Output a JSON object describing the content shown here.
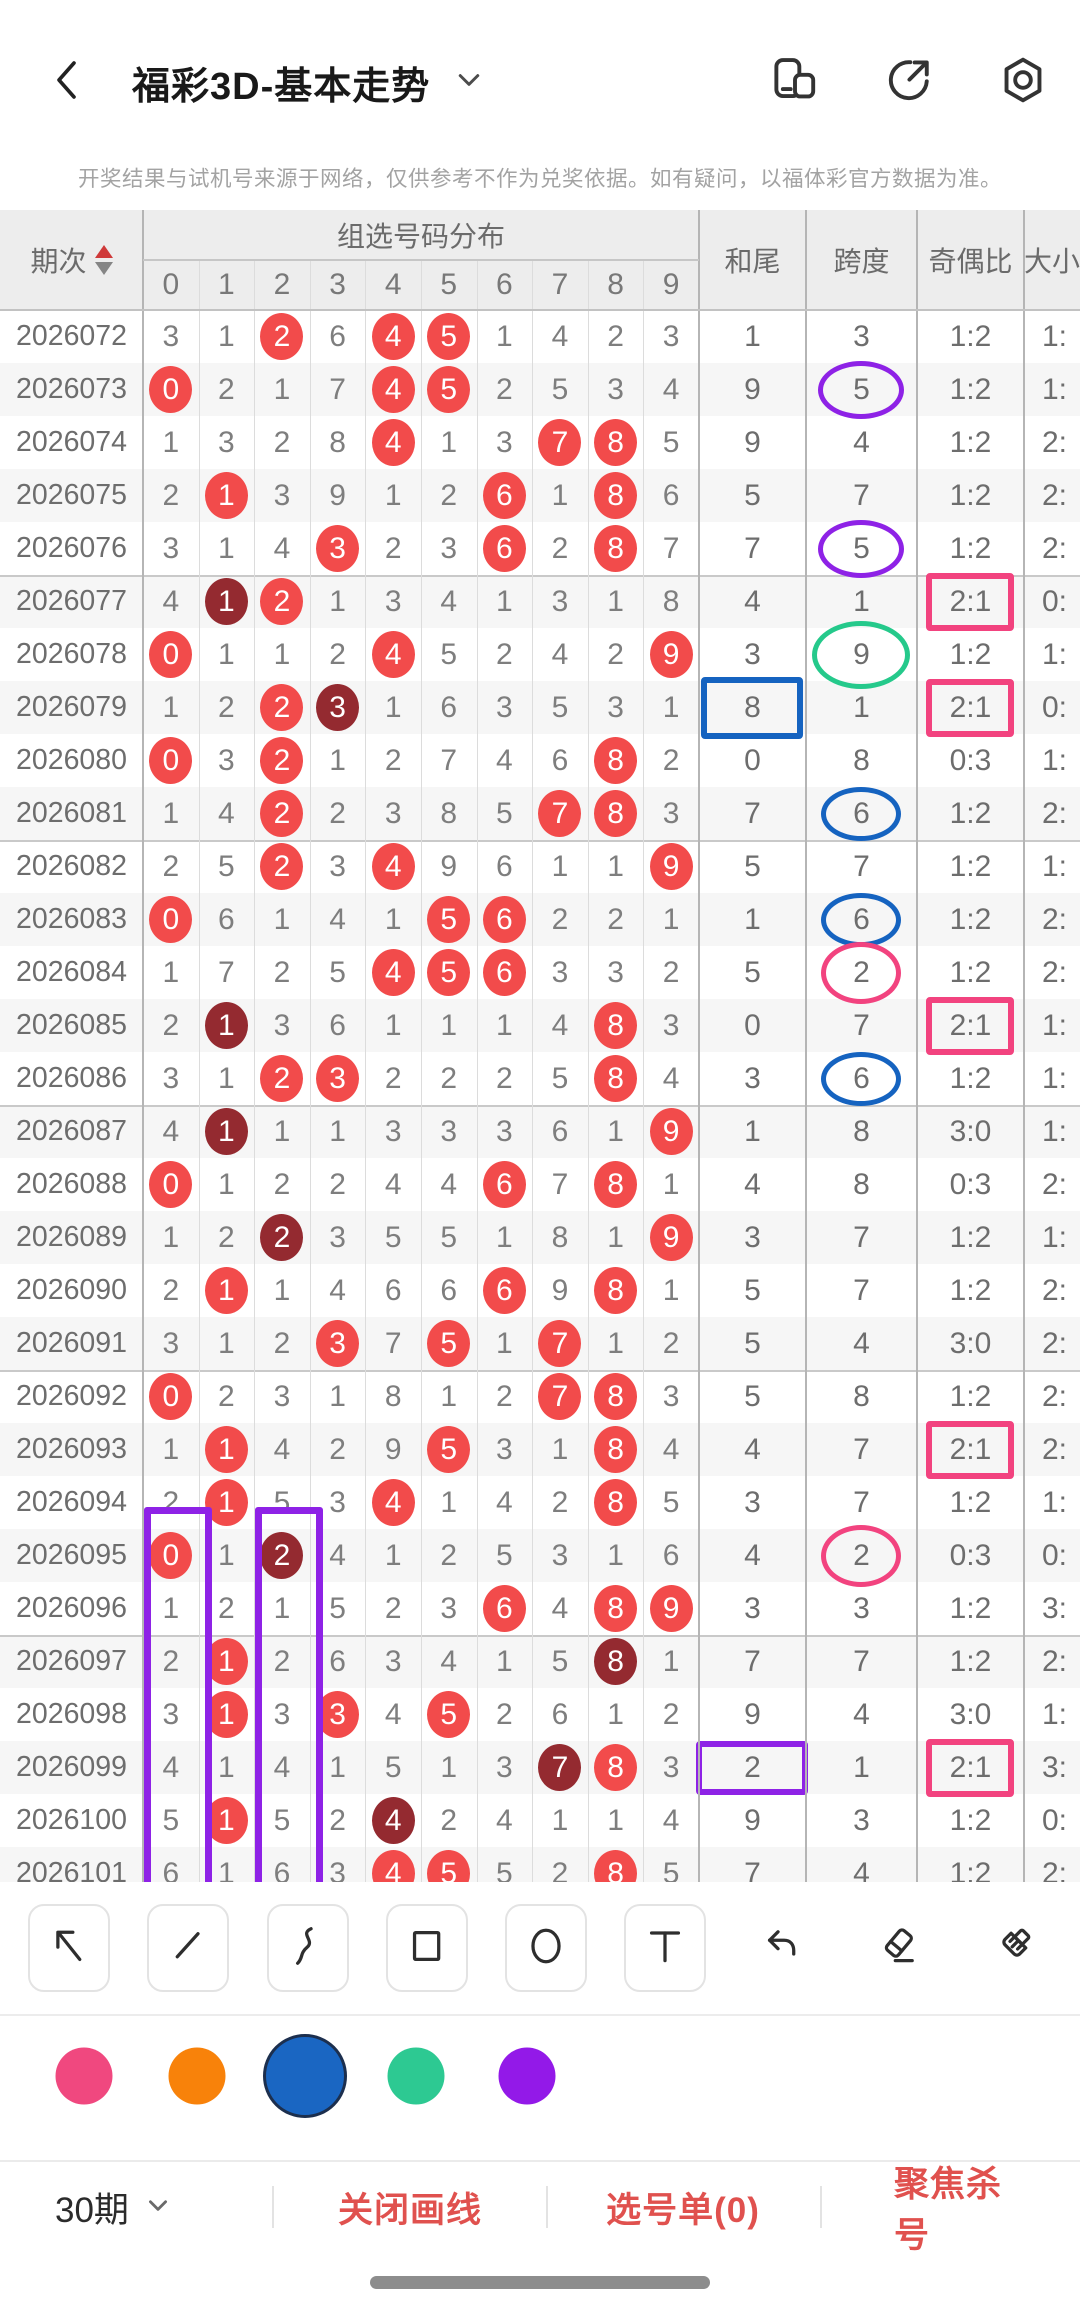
{
  "header": {
    "title": "福彩3D-基本走势",
    "action_icons": [
      "compare",
      "share",
      "settings"
    ]
  },
  "disclaimer": "开奖结果与试机号来源于网络，仅供参考不作为兑奖依据。如有疑问，以福体彩官方数据为准。",
  "table": {
    "header": {
      "period": "期次",
      "group": "组选号码分布",
      "digits": [
        "0",
        "1",
        "2",
        "3",
        "4",
        "5",
        "6",
        "7",
        "8",
        "9"
      ],
      "hewei": "和尾",
      "kuadu": "跨度",
      "jiou": "奇偶比",
      "daxiao": "大小"
    },
    "digits_format": "space separated tokens; suffix r = red filled circle, d = dark-red filled circle",
    "rows": [
      {
        "period": "2026072",
        "digits": "3 1 2r 6 4r 5r 1 4 2 3",
        "hewei": "1",
        "kuadu": "3",
        "jiou": "1:2",
        "daxiao": "1:",
        "ann": {}
      },
      {
        "period": "2026073",
        "digits": "0r 2 1 7 4r 5r 2 5 3 4",
        "hewei": "9",
        "kuadu": "5",
        "jiou": "1:2",
        "daxiao": "1:",
        "ann": {
          "kuadu": "ellipse purple"
        }
      },
      {
        "period": "2026074",
        "digits": "1 3 2 8 4r 1 3 7r 8r 5",
        "hewei": "9",
        "kuadu": "4",
        "jiou": "1:2",
        "daxiao": "2:",
        "ann": {}
      },
      {
        "period": "2026075",
        "digits": "2 1r 3 9 1 2 6r 1 8r 6",
        "hewei": "5",
        "kuadu": "7",
        "jiou": "1:2",
        "daxiao": "2:",
        "ann": {}
      },
      {
        "period": "2026076",
        "digits": "3 1 4 3r 2 3 6r 2 8r 7",
        "hewei": "7",
        "kuadu": "5",
        "jiou": "1:2",
        "daxiao": "2:",
        "ann": {
          "kuadu": "ellipse purple"
        }
      },
      {
        "period": "2026077",
        "digits": "4 1d 2r 1 3 4 1 3 1 8",
        "hewei": "4",
        "kuadu": "1",
        "jiou": "2:1",
        "daxiao": "0:",
        "ann": {
          "jiou": "rect pink"
        }
      },
      {
        "period": "2026078",
        "digits": "0r 1 1 2 4r 5 2 4 2 9r",
        "hewei": "3",
        "kuadu": "9",
        "jiou": "1:2",
        "daxiao": "1:",
        "ann": {
          "kuadu": "ellipse green"
        }
      },
      {
        "period": "2026079",
        "digits": "1 2 2r 3d 1 6 3 5 3 1",
        "hewei": "8",
        "kuadu": "1",
        "jiou": "2:1",
        "daxiao": "0:",
        "ann": {
          "hewei": "rect blue",
          "jiou": "rect pink"
        }
      },
      {
        "period": "2026080",
        "digits": "0r 3 2r 1 2 7 4 6 8r 2",
        "hewei": "0",
        "kuadu": "8",
        "jiou": "0:3",
        "daxiao": "1:",
        "ann": {}
      },
      {
        "period": "2026081",
        "digits": "1 4 2r 2 3 8 5 7r 8r 3",
        "hewei": "7",
        "kuadu": "6",
        "jiou": "1:2",
        "daxiao": "2:",
        "ann": {
          "kuadu": "ellipse blue"
        }
      },
      {
        "period": "2026082",
        "digits": "2 5 2r 3 4r 9 6 1 1 9r",
        "hewei": "5",
        "kuadu": "7",
        "jiou": "1:2",
        "daxiao": "1:",
        "ann": {}
      },
      {
        "period": "2026083",
        "digits": "0r 6 1 4 1 5r 6r 2 2 1",
        "hewei": "1",
        "kuadu": "6",
        "jiou": "1:2",
        "daxiao": "2:",
        "ann": {
          "kuadu": "ellipse blue"
        }
      },
      {
        "period": "2026084",
        "digits": "1 7 2 5 4r 5r 6r 3 3 2",
        "hewei": "5",
        "kuadu": "2",
        "jiou": "1:2",
        "daxiao": "2:",
        "ann": {
          "kuadu": "ellipse pink"
        }
      },
      {
        "period": "2026085",
        "digits": "2 1d 3 6 1 1 1 4 8r 3",
        "hewei": "0",
        "kuadu": "7",
        "jiou": "2:1",
        "daxiao": "1:",
        "ann": {
          "jiou": "rect pink"
        }
      },
      {
        "period": "2026086",
        "digits": "3 1 2r 3r 2 2 2 5 8r 4",
        "hewei": "3",
        "kuadu": "6",
        "jiou": "1:2",
        "daxiao": "1:",
        "ann": {
          "kuadu": "ellipse blue"
        }
      },
      {
        "period": "2026087",
        "digits": "4 1d 1 1 3 3 3 6 1 9r",
        "hewei": "1",
        "kuadu": "8",
        "jiou": "3:0",
        "daxiao": "1:",
        "ann": {}
      },
      {
        "period": "2026088",
        "digits": "0r 1 2 2 4 4 6r 7 8r 1",
        "hewei": "4",
        "kuadu": "8",
        "jiou": "0:3",
        "daxiao": "2:",
        "ann": {}
      },
      {
        "period": "2026089",
        "digits": "1 2 2d 3 5 5 1 8 1 9r",
        "hewei": "3",
        "kuadu": "7",
        "jiou": "1:2",
        "daxiao": "1:",
        "ann": {}
      },
      {
        "period": "2026090",
        "digits": "2 1r 1 4 6 6 6r 9 8r 1",
        "hewei": "5",
        "kuadu": "7",
        "jiou": "1:2",
        "daxiao": "2:",
        "ann": {}
      },
      {
        "period": "2026091",
        "digits": "3 1 2 3r 7 5r 1 7r 1 2",
        "hewei": "5",
        "kuadu": "4",
        "jiou": "3:0",
        "daxiao": "2:",
        "ann": {}
      },
      {
        "period": "2026092",
        "digits": "0r 2 3 1 8 1 2 7r 8r 3",
        "hewei": "5",
        "kuadu": "8",
        "jiou": "1:2",
        "daxiao": "2:",
        "ann": {}
      },
      {
        "period": "2026093",
        "digits": "1 1r 4 2 9 5r 3 1 8r 4",
        "hewei": "4",
        "kuadu": "7",
        "jiou": "2:1",
        "daxiao": "2:",
        "ann": {
          "jiou": "rect pink"
        }
      },
      {
        "period": "2026094",
        "digits": "2 1r 5 3 4r 1 4 2 8r 5",
        "hewei": "3",
        "kuadu": "7",
        "jiou": "1:2",
        "daxiao": "1:",
        "ann": {}
      },
      {
        "period": "2026095",
        "digits": "0r 1 2d 4 1 2 5 3 1 6",
        "hewei": "4",
        "kuadu": "2",
        "jiou": "0:3",
        "daxiao": "0:",
        "ann": {
          "kuadu": "ellipse pink"
        }
      },
      {
        "period": "2026096",
        "digits": "1 2 1 5 2 3 6r 4 8r 9r",
        "hewei": "3",
        "kuadu": "3",
        "jiou": "1:2",
        "daxiao": "3:",
        "ann": {}
      },
      {
        "period": "2026097",
        "digits": "2 1r 2 6 3 4 1 5 8d 1",
        "hewei": "7",
        "kuadu": "7",
        "jiou": "1:2",
        "daxiao": "2:",
        "ann": {}
      },
      {
        "period": "2026098",
        "digits": "3 1r 3 3r 4 5r 2 6 1 2",
        "hewei": "9",
        "kuadu": "4",
        "jiou": "3:0",
        "daxiao": "1:",
        "ann": {}
      },
      {
        "period": "2026099",
        "digits": "4 1 4 1 5 1 3 7d 8r 3",
        "hewei": "2",
        "kuadu": "1",
        "jiou": "2:1",
        "daxiao": "3:",
        "ann": {
          "hewei": "rect purple",
          "jiou": "rect pink"
        }
      },
      {
        "period": "2026100",
        "digits": "5 1r 5 2 4d 2 4 1 1 4",
        "hewei": "9",
        "kuadu": "3",
        "jiou": "1:2",
        "daxiao": "0:",
        "ann": {}
      },
      {
        "period": "2026101",
        "digits": "6 1 6 3 4r 5r 5 2 8r 5",
        "hewei": "7",
        "kuadu": "4",
        "jiou": "1:2",
        "daxiao": "2:",
        "ann": {}
      }
    ]
  },
  "pen_annotations": {
    "colors": {
      "purple": "#8e22e6",
      "green": "#25c98b",
      "blue": "#1563c0",
      "pink": "#f2437f"
    },
    "column_rects": [
      {
        "color": "purple",
        "digit_column": "0",
        "from_period": "2026095"
      },
      {
        "color": "purple",
        "digit_column": "2",
        "from_period": "2026095"
      }
    ]
  },
  "toolbar": {
    "tools": [
      {
        "id": "arrow-tool",
        "boxed": true
      },
      {
        "id": "line-tool",
        "boxed": true
      },
      {
        "id": "curve-tool",
        "boxed": true
      },
      {
        "id": "rect-tool",
        "boxed": true
      },
      {
        "id": "circle-tool",
        "boxed": true
      },
      {
        "id": "text-tool",
        "boxed": true
      },
      {
        "id": "undo-tool",
        "boxed": false
      },
      {
        "id": "eraser-tool",
        "boxed": false
      },
      {
        "id": "brush-tool",
        "boxed": false
      }
    ]
  },
  "palette": {
    "colors": [
      {
        "name": "pink",
        "hex": "#f0487f",
        "selected": false
      },
      {
        "name": "orange",
        "hex": "#f8820a",
        "selected": false
      },
      {
        "name": "blue",
        "hex": "#1a66c2",
        "selected": true
      },
      {
        "name": "green",
        "hex": "#2dc992",
        "selected": false
      },
      {
        "name": "purple",
        "hex": "#9319e8",
        "selected": false
      }
    ]
  },
  "bottom_bar": {
    "period_count": "30期",
    "actions": [
      "关闭画线",
      "选号单(0)",
      "聚焦杀号"
    ]
  },
  "theme": {
    "red_circle": "#f24b4b",
    "dark_circle": "#942a30",
    "accent_red": "#e0514e"
  }
}
